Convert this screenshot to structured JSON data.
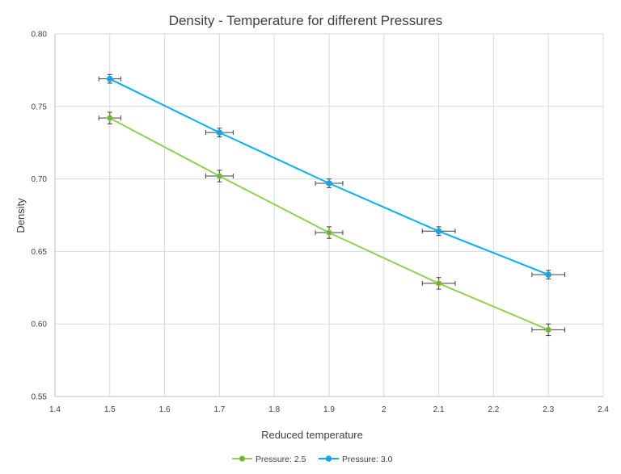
{
  "chart_data": {
    "type": "scatter",
    "title": "Density - Temperature for different Pressures",
    "xlabel": "Reduced temperature",
    "ylabel": "Density",
    "xlim": [
      1.4,
      2.4
    ],
    "ylim": [
      0.55,
      0.8
    ],
    "xticks": [
      "1.4",
      "1.5",
      "1.6",
      "1.7",
      "1.8",
      "1.9",
      "2",
      "2.1",
      "2.2",
      "2.3",
      "2.4"
    ],
    "yticks": [
      "0.55",
      "0.60",
      "0.65",
      "0.70",
      "0.75",
      "0.80"
    ],
    "grid": true,
    "legend_position": "bottom",
    "series": [
      {
        "name": "Pressure: 2.5",
        "color": "#92d050",
        "marker_fill": "#70ad47",
        "x": [
          1.5,
          1.7,
          1.9,
          2.1,
          2.3
        ],
        "y": [
          0.742,
          0.702,
          0.663,
          0.628,
          0.596
        ],
        "x_err": [
          0.02,
          0.025,
          0.025,
          0.03,
          0.03
        ],
        "y_err": [
          0.004,
          0.004,
          0.004,
          0.004,
          0.004
        ]
      },
      {
        "name": "Pressure: 3.0",
        "color": "#00b0f0",
        "marker_fill": "#2e9bd6",
        "x": [
          1.5,
          1.7,
          1.9,
          2.1,
          2.3
        ],
        "y": [
          0.769,
          0.732,
          0.697,
          0.664,
          0.634
        ],
        "x_err": [
          0.02,
          0.025,
          0.025,
          0.03,
          0.03
        ],
        "y_err": [
          0.003,
          0.003,
          0.003,
          0.003,
          0.003
        ]
      }
    ]
  }
}
